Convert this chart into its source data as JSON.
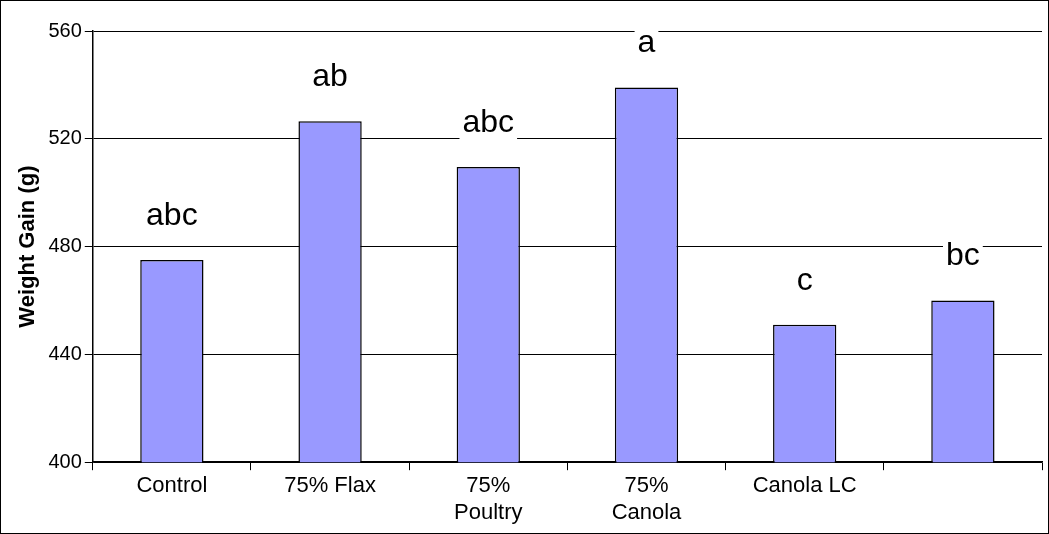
{
  "chart_data": {
    "type": "bar",
    "ylabel": "Weight Gain (g)",
    "categories": [
      "Control",
      "75% Flax",
      "75% Poultry",
      "75% Canola",
      "Canola LC",
      null
    ],
    "values": [
      475,
      526.5,
      509.5,
      539,
      451,
      460
    ],
    "value_labels": [
      "abc",
      "ab",
      "abc",
      "a",
      "c",
      "bc"
    ],
    "color": "#9999ff",
    "ylim": [
      400,
      560
    ],
    "yticks": [
      400,
      440,
      480,
      520,
      560
    ],
    "grid": "y",
    "legend": false
  }
}
